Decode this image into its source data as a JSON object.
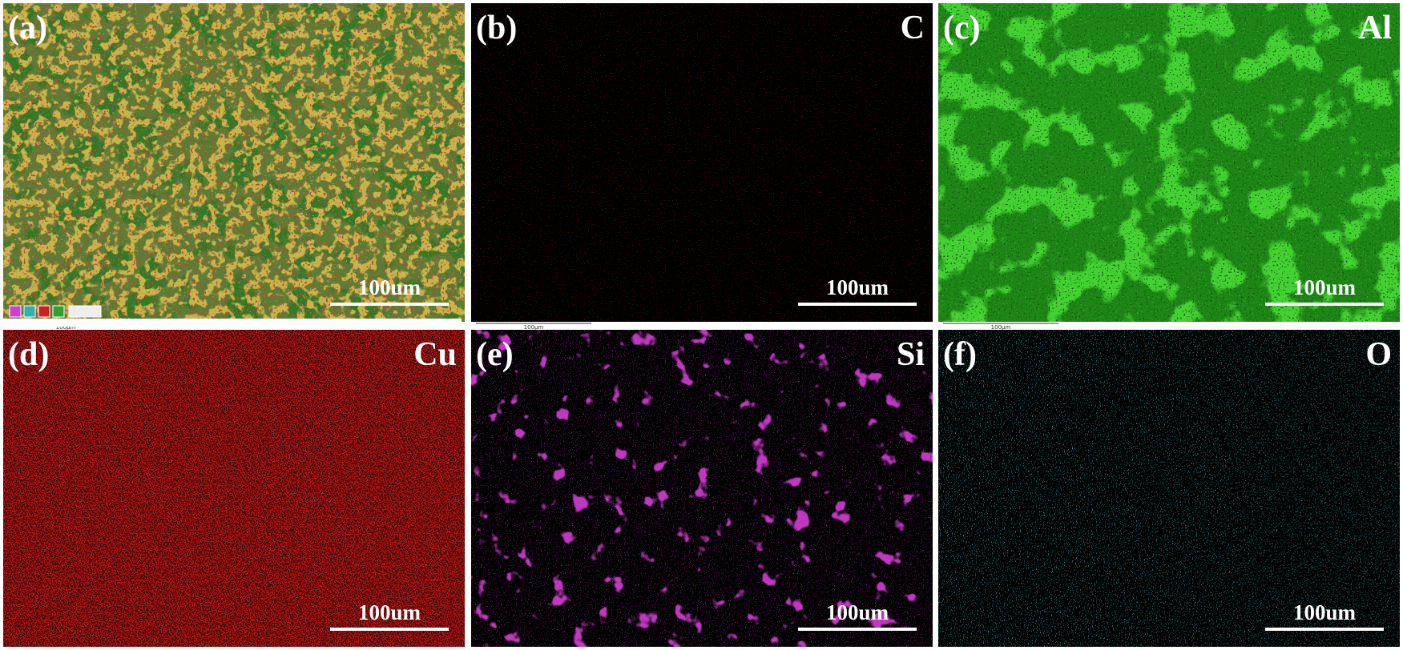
{
  "panels": [
    {
      "label": "(a)",
      "scale": "100um",
      "sub_scale": "100μm"
    },
    {
      "label": "(b)",
      "element": "C",
      "scale": "100um",
      "sub_scale": "100μm"
    },
    {
      "label": "(c)",
      "element": "Al",
      "scale": "100um",
      "sub_scale": "100μm"
    },
    {
      "label": "(d)",
      "element": "Cu",
      "scale": "100um"
    },
    {
      "label": "(e)",
      "element": "Si",
      "scale": "100um"
    },
    {
      "label": "(f)",
      "element": "O",
      "scale": "100um"
    }
  ]
}
